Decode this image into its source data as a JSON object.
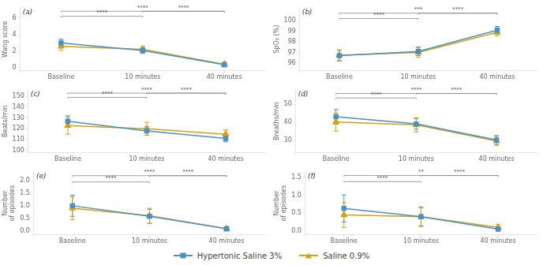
{
  "chart_data": [
    {
      "type": "line",
      "title": "(a)",
      "ylabel": "Wang score",
      "categories": [
        "Baseline",
        "10 minutes",
        "40 minutes"
      ],
      "series": [
        {
          "name": "Hypertonic Saline 3%",
          "color": "#4A90C4",
          "marker": "square",
          "values": [
            3.0,
            2.1,
            0.4
          ],
          "errors": [
            0.45,
            0.35,
            0.25
          ]
        },
        {
          "name": "Saline 0.9%",
          "color": "#D4A017",
          "marker": "triangle",
          "values": [
            2.6,
            2.25,
            0.45
          ],
          "errors": [
            0.5,
            0.35,
            0.2
          ]
        }
      ],
      "ylim": [
        -0.3,
        7.2
      ],
      "yticks": [
        0,
        2,
        4,
        6
      ],
      "grid": false,
      "annotations": [
        {
          "from": "Baseline",
          "to": "40 minutes",
          "y": 6.8,
          "label": "****"
        },
        {
          "from": "Baseline",
          "to": "10 minutes",
          "y": 6.2,
          "label": "****"
        },
        {
          "from": "10 minutes",
          "to": "40 minutes",
          "y": 6.8,
          "label": "****"
        }
      ]
    },
    {
      "type": "line",
      "title": "(b)",
      "ylabel": "SpO₂ (%)",
      "categories": [
        "Baseline",
        "10 minutes",
        "40 minutes"
      ],
      "series": [
        {
          "name": "Hypertonic Saline 3%",
          "color": "#4A90C4",
          "marker": "square",
          "values": [
            96.7,
            97.1,
            99.1
          ],
          "errors": [
            0.5,
            0.4,
            0.35
          ]
        },
        {
          "name": "Saline 0.9%",
          "color": "#D4A017",
          "marker": "triangle",
          "values": [
            96.75,
            97.0,
            98.9
          ],
          "errors": [
            0.5,
            0.45,
            0.35
          ]
        }
      ],
      "ylim": [
        95.3,
        101.2
      ],
      "yticks": [
        96,
        97,
        98,
        99,
        100
      ],
      "grid": false,
      "annotations": [
        {
          "from": "Baseline",
          "to": "40 minutes",
          "y": 100.7,
          "label": "***"
        },
        {
          "from": "Baseline",
          "to": "10 minutes",
          "y": 100.2,
          "label": "****"
        },
        {
          "from": "10 minutes",
          "to": "40 minutes",
          "y": 100.7,
          "label": "****"
        }
      ]
    },
    {
      "type": "line",
      "title": "(c)",
      "ylabel": "Beats/min",
      "categories": [
        "Baseline",
        "10 minutes",
        "40 minutes"
      ],
      "series": [
        {
          "name": "Hypertonic Saline 3%",
          "color": "#4A90C4",
          "marker": "square",
          "values": [
            127,
            118,
            111
          ],
          "errors": [
            5,
            4,
            3
          ]
        },
        {
          "name": "Saline 0.9%",
          "color": "#D4A017",
          "marker": "triangle",
          "values": [
            123,
            120,
            115
          ],
          "errors": [
            8,
            6,
            4
          ]
        }
      ],
      "ylim": [
        98,
        156
      ],
      "yticks": [
        100,
        110,
        120,
        130,
        140,
        150
      ],
      "grid": false,
      "annotations": [
        {
          "from": "Baseline",
          "to": "40 minutes",
          "y": 153,
          "label": "****"
        },
        {
          "from": "Baseline",
          "to": "10 minutes",
          "y": 149,
          "label": "****"
        },
        {
          "from": "10 minutes",
          "to": "40 minutes",
          "y": 153,
          "label": "****"
        }
      ]
    },
    {
      "type": "line",
      "title": "(d)",
      "ylabel": "Breaths/min",
      "categories": [
        "Baseline",
        "10 minutes",
        "40 minutes"
      ],
      "series": [
        {
          "name": "Hypertonic Saline 3%",
          "color": "#4A90C4",
          "marker": "square",
          "values": [
            43,
            39,
            30
          ],
          "errors": [
            4,
            3,
            2.5
          ]
        },
        {
          "name": "Saline 0.9%",
          "color": "#D4A017",
          "marker": "triangle",
          "values": [
            40,
            38.5,
            29.5
          ],
          "errors": [
            5,
            4,
            2.5
          ]
        }
      ],
      "ylim": [
        23,
        58
      ],
      "yticks": [
        30,
        40,
        50
      ],
      "grid": false,
      "annotations": [
        {
          "from": "Baseline",
          "to": "40 minutes",
          "y": 56,
          "label": "****"
        },
        {
          "from": "Baseline",
          "to": "10 minutes",
          "y": 53.5,
          "label": "****"
        },
        {
          "from": "10 minutes",
          "to": "40 minutes",
          "y": 56,
          "label": "****"
        }
      ]
    },
    {
      "type": "line",
      "title": "(e)",
      "ylabel": "Number\nof episodes",
      "categories": [
        "Baseline",
        "10 minutes",
        "40 minutes"
      ],
      "series": [
        {
          "name": "Hypertonic Saline 3%",
          "color": "#4A90C4",
          "marker": "square",
          "values": [
            1.0,
            0.58,
            0.08
          ],
          "errors": [
            0.42,
            0.28,
            0.08
          ]
        },
        {
          "name": "Saline 0.9%",
          "color": "#D4A017",
          "marker": "triangle",
          "values": [
            0.9,
            0.6,
            0.08
          ],
          "errors": [
            0.45,
            0.3,
            0.08
          ]
        }
      ],
      "ylim": [
        -0.15,
        2.35
      ],
      "yticks": [
        {
          "value": 0,
          "label": "0.0"
        },
        0.5,
        {
          "value": 1,
          "label": "1.0"
        },
        1.5,
        {
          "value": 2,
          "label": "2.0"
        }
      ],
      "grid": false,
      "annotations": [
        {
          "from": "Baseline",
          "to": "40 minutes",
          "y": 2.2,
          "label": "****"
        },
        {
          "from": "Baseline",
          "to": "10 minutes",
          "y": 1.95,
          "label": "****"
        },
        {
          "from": "10 minutes",
          "to": "40 minutes",
          "y": 2.2,
          "label": "****"
        }
      ]
    },
    {
      "type": "line",
      "title": "(f)",
      "ylabel": "Number\nof episodes",
      "categories": [
        "Baseline",
        "10 minutes",
        "40 minutes"
      ],
      "series": [
        {
          "name": "Hypertonic Saline 3%",
          "color": "#4A90C4",
          "marker": "square",
          "values": [
            0.63,
            0.4,
            0.05
          ],
          "errors": [
            0.38,
            0.25,
            0.05
          ]
        },
        {
          "name": "Saline 0.9%",
          "color": "#D4A017",
          "marker": "triangle",
          "values": [
            0.45,
            0.4,
            0.1
          ],
          "errors": [
            0.35,
            0.28,
            0.08
          ]
        }
      ],
      "ylim": [
        -0.1,
        1.65
      ],
      "yticks": [
        {
          "value": 0,
          "label": "0.0"
        },
        0.5,
        {
          "value": 1,
          "label": "1.0"
        },
        1.5
      ],
      "grid": false,
      "annotations": [
        {
          "from": "Baseline",
          "to": "40 minutes",
          "y": 1.55,
          "label": "**"
        },
        {
          "from": "Baseline",
          "to": "10 minutes",
          "y": 1.38,
          "label": "****"
        },
        {
          "from": "10 minutes",
          "to": "40 minutes",
          "y": 1.55,
          "label": "****"
        }
      ]
    }
  ]
}
